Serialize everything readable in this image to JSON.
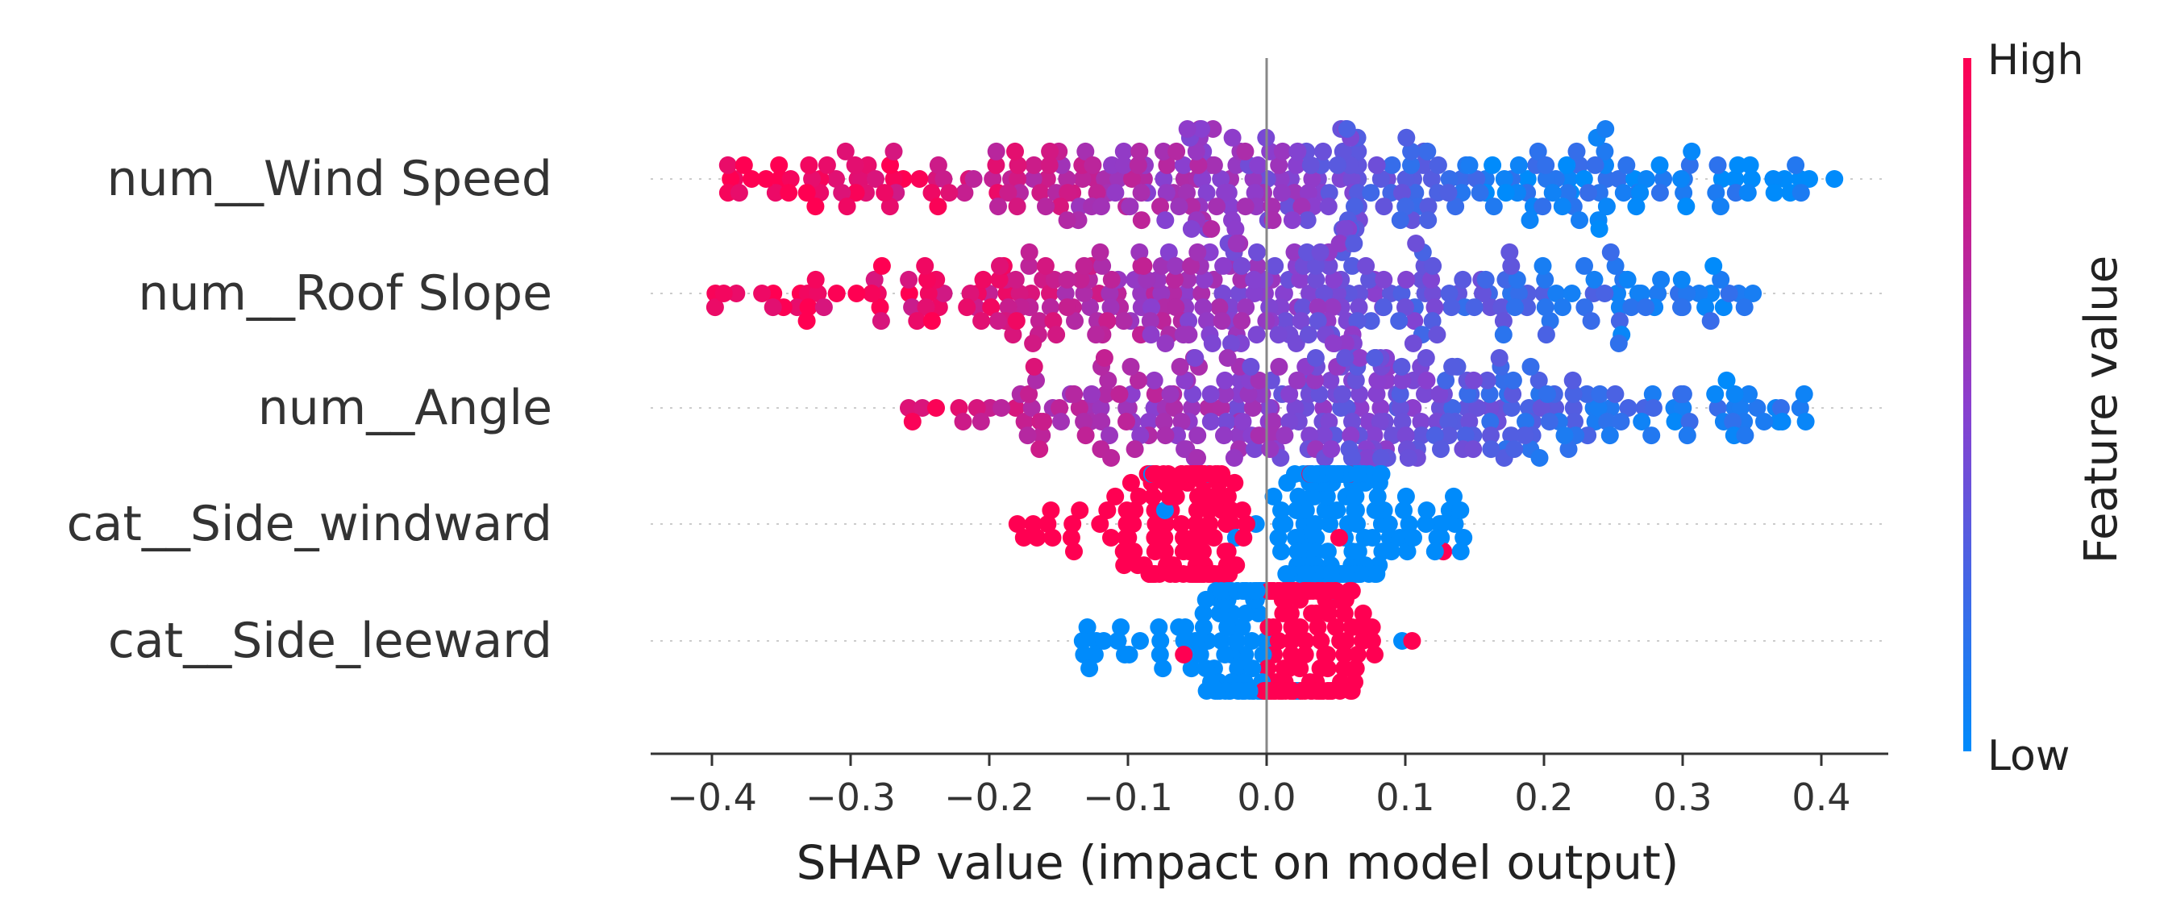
{
  "chart_data": {
    "type": "scatter",
    "subtype": "beeswarm",
    "title": "",
    "xlabel": "SHAP value (impact on model output)",
    "ylabel": "",
    "xlim": [
      -0.44,
      0.45
    ],
    "xticks": [
      -0.4,
      -0.3,
      -0.2,
      -0.1,
      0.0,
      0.1,
      0.2,
      0.3,
      0.4
    ],
    "xtick_labels": [
      "−0.4",
      "−0.3",
      "−0.2",
      "−0.1",
      "0.0",
      "0.1",
      "0.2",
      "0.3",
      "0.4"
    ],
    "features": [
      {
        "name": "num__Wind Speed",
        "n_points": 320,
        "shap_min": -0.39,
        "shap_max": 0.41,
        "trend": "high values → negative SHAP, low values → positive SHAP",
        "anchors": [
          [
            -0.39,
            1.0
          ],
          [
            -0.25,
            0.9
          ],
          [
            -0.1,
            0.62
          ],
          [
            0.02,
            0.5
          ],
          [
            0.15,
            0.12
          ],
          [
            0.41,
            0.0
          ]
        ]
      },
      {
        "name": "num__Roof Slope",
        "n_points": 320,
        "shap_min": -0.4,
        "shap_max": 0.36,
        "trend": "high values → negative SHAP, mixed near zero, low values → positive SHAP",
        "anchors": [
          [
            -0.4,
            1.0
          ],
          [
            -0.2,
            0.85
          ],
          [
            -0.05,
            0.55
          ],
          [
            0.08,
            0.4
          ],
          [
            0.2,
            0.2
          ],
          [
            0.36,
            0.05
          ]
        ]
      },
      {
        "name": "num__Angle",
        "n_points": 320,
        "shap_min": -0.26,
        "shap_max": 0.39,
        "trend": "mixed; high values tend negative, low values tend positive",
        "anchors": [
          [
            -0.26,
            0.9
          ],
          [
            -0.12,
            0.65
          ],
          [
            0.0,
            0.5
          ],
          [
            0.1,
            0.4
          ],
          [
            0.25,
            0.15
          ],
          [
            0.39,
            0.05
          ]
        ]
      },
      {
        "name": "cat__Side_windward",
        "n_points": 300,
        "shap_min": -0.18,
        "shap_max": 0.145,
        "trend": "high (1) → negative SHAP, low (0) → positive SHAP",
        "anchors": [
          [
            -0.18,
            1.0
          ],
          [
            -0.01,
            1.0
          ],
          [
            0.0,
            0.0
          ],
          [
            0.145,
            0.0
          ]
        ]
      },
      {
        "name": "cat__Side_leeward",
        "n_points": 240,
        "shap_min": -0.135,
        "shap_max": 0.105,
        "trend": "low (0) → negative SHAP, high (1) → positive SHAP",
        "anchors": [
          [
            -0.135,
            0.0
          ],
          [
            -0.01,
            0.05
          ],
          [
            0.01,
            1.0
          ],
          [
            0.105,
            1.0
          ]
        ]
      }
    ],
    "colorbar": {
      "title": "Feature value",
      "high_label": "High",
      "low_label": "Low",
      "high_color": "#ff0052",
      "mid_color": "#8a3fcf",
      "low_color": "#008bfb"
    },
    "zero_line": true,
    "grid": false
  }
}
